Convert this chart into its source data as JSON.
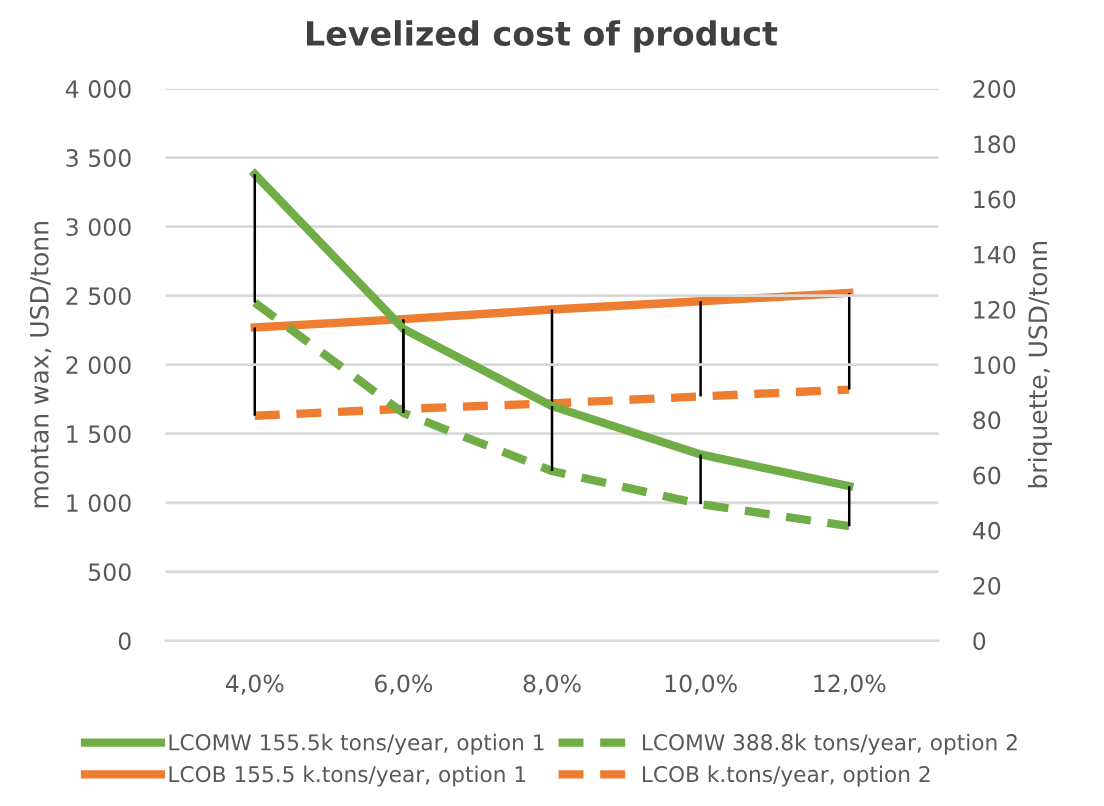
{
  "chart_data": {
    "type": "line",
    "title": "Levelized cost of product",
    "ylabel": "montan wax, USD/tonn",
    "y2label": "briquette, USD/tonn",
    "categories": [
      "4,0%",
      "6,0%",
      "8,0%",
      "10,0%",
      "12,0%"
    ],
    "series": [
      {
        "name": "LCOMW 155.5k tons/year, option 1",
        "color": "#70ad47",
        "line_style": "solid",
        "values": [
          3380,
          2260,
          1700,
          1350,
          1120
        ],
        "errors": [
          [
            2450,
            3380
          ],
          [
            1650,
            2260
          ],
          [
            1230,
            1700
          ],
          [
            990,
            1350
          ],
          [
            830,
            1120
          ]
        ]
      },
      {
        "name": "LCOMW 388.8k tons/year, option 2",
        "color": "#70ad47",
        "line_style": "dashed",
        "values": [
          2450,
          1650,
          1230,
          990,
          830
        ]
      },
      {
        "name": "LCOB 155.5 k.tons/year, option 1",
        "color": "#ed7d31",
        "line_style": "solid",
        "axis": "y2",
        "values": [
          113.5,
          116.5,
          120,
          123,
          126
        ],
        "errors": [
          [
            81.5,
            113.5
          ],
          [
            84,
            116.5
          ],
          [
            86,
            120
          ],
          [
            88.5,
            123
          ],
          [
            91,
            126
          ]
        ]
      },
      {
        "name": "LCOB k.tons/year, option 2",
        "color": "#ed7d31",
        "line_style": "dashed",
        "axis": "y2",
        "values": [
          81.5,
          84,
          86,
          88.5,
          91
        ]
      }
    ],
    "ylim": [
      0,
      4000
    ],
    "yticks": [
      {
        "value": 0,
        "label": "0"
      },
      {
        "value": 500,
        "label": "500"
      },
      {
        "value": 1000,
        "label": "1 000"
      },
      {
        "value": 1500,
        "label": "1 500"
      },
      {
        "value": 2000,
        "label": "2 000"
      },
      {
        "value": 2500,
        "label": "2 500"
      },
      {
        "value": 3000,
        "label": "3 000"
      },
      {
        "value": 3500,
        "label": "3 500"
      },
      {
        "value": 4000,
        "label": "4 000"
      }
    ],
    "y2lim": [
      0,
      200
    ],
    "y2ticks": [
      0,
      20,
      40,
      60,
      80,
      100,
      120,
      140,
      160,
      180,
      200
    ],
    "grid": "y",
    "legend": "bottom",
    "marker": "none"
  }
}
